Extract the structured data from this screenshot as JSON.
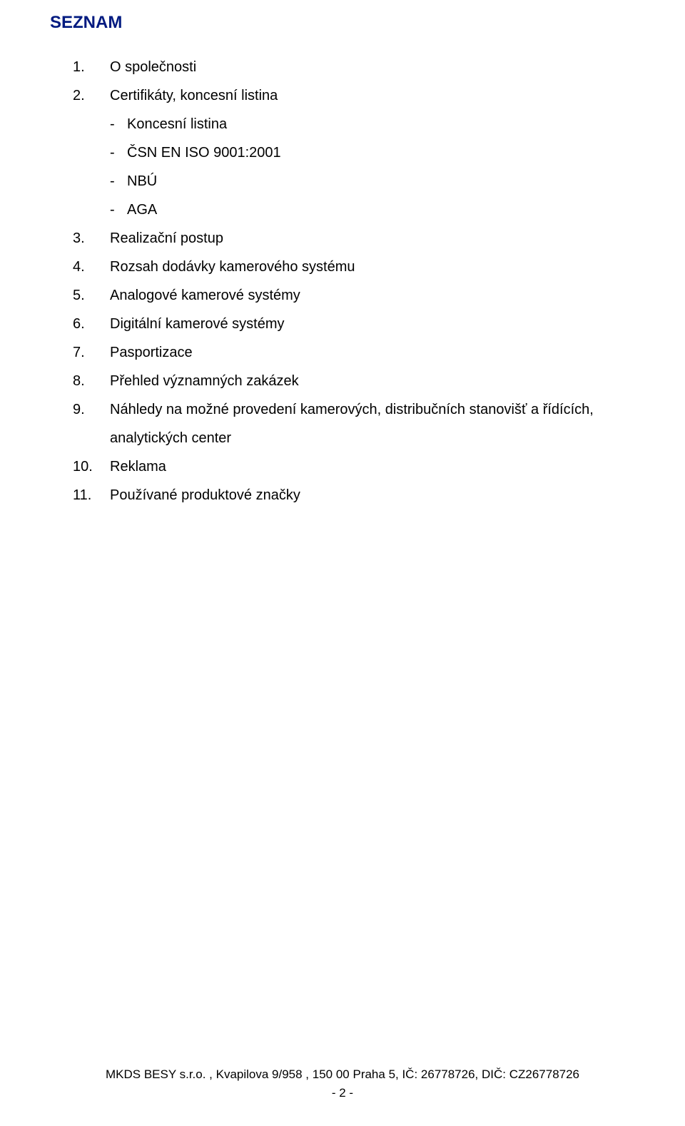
{
  "title": "SEZNAM",
  "items": {
    "i1": "O společnosti",
    "i2": "Certifikáty, koncesní listina",
    "i2_sub": {
      "a": "Koncesní listina",
      "b": "ČSN EN ISO 9001:2001",
      "c": "NBÚ",
      "d": "AGA"
    },
    "i3": "Realizační postup",
    "i4": "Rozsah dodávky kamerového systému",
    "i5": "Analogové kamerové systémy",
    "i6": "Digitální kamerové systémy",
    "i7": "Pasportizace",
    "i8": "Přehled významných zakázek",
    "i9a": "Náhledy na možné provedení kamerových, distribučních stanovišť a řídících,",
    "i9b": "analytických center",
    "i10": "Reklama",
    "i11": "Používané produktové značky"
  },
  "footer": {
    "line1": "MKDS BESY s.r.o. , Kvapilova 9/958 ,  150 00  Praha 5, IČ: 26778726, DIČ: CZ26778726",
    "line2": "- 2 -"
  },
  "colors": {
    "title": "#001a80",
    "text": "#000000",
    "background": "#ffffff"
  },
  "fonts": {
    "family": "Arial",
    "title_size_pt": 18,
    "body_size_pt": 15,
    "footer_size_pt": 13
  }
}
